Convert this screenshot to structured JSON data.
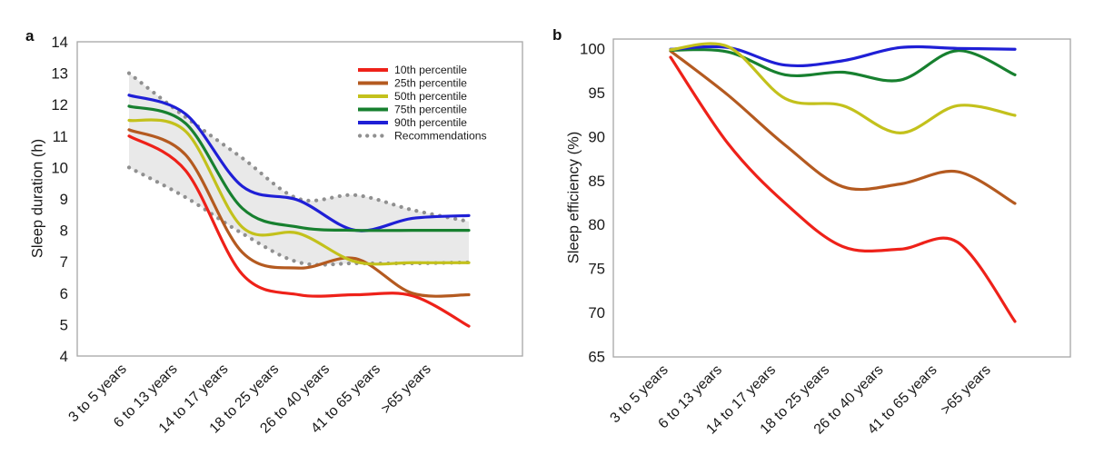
{
  "chart_data": [
    {
      "type": "line",
      "panel_label": "a",
      "ylabel": "Sleep duration (h)",
      "ylim": [
        4,
        14
      ],
      "yticks": [
        4,
        5,
        6,
        7,
        8,
        9,
        10,
        11,
        12,
        13,
        14
      ],
      "categories": [
        "3 to 5 years",
        "6 to 13 years",
        "14 to 17 years",
        "18 to 25 years",
        "26 to 40 years",
        "41 to 65 years",
        ">65 years"
      ],
      "series": [
        {
          "name": "10th percentile",
          "color": "#ee2119",
          "values": [
            11.0,
            9.9,
            6.6,
            5.95,
            5.95,
            5.92,
            4.95
          ]
        },
        {
          "name": "25th percentile",
          "color": "#b45a20",
          "values": [
            11.2,
            10.4,
            7.3,
            6.8,
            7.1,
            6.0,
            5.95
          ]
        },
        {
          "name": "50th percentile",
          "color": "#c3c11c",
          "values": [
            11.5,
            11.15,
            8.1,
            7.9,
            7.0,
            6.97,
            6.97
          ]
        },
        {
          "name": "75th percentile",
          "color": "#17802f",
          "values": [
            11.95,
            11.4,
            8.7,
            8.1,
            8.0,
            8.0,
            8.0
          ]
        },
        {
          "name": "90th percentile",
          "color": "#1f1fd6",
          "values": [
            12.3,
            11.7,
            9.4,
            8.95,
            8.0,
            8.38,
            8.47
          ]
        }
      ],
      "recommendations": {
        "name": "Recommendations",
        "color": "#909090",
        "band_color": "#e9e9e9",
        "upper": [
          13.0,
          11.6,
          10.3,
          9.0,
          9.12,
          8.65,
          8.28
        ],
        "lower": [
          10.0,
          9.05,
          7.9,
          6.98,
          6.95,
          6.95,
          6.98
        ]
      },
      "legend_position": "top-right",
      "grid": false
    },
    {
      "type": "line",
      "panel_label": "b",
      "ylabel": "Sleep efficiency (%)",
      "ylim": [
        65,
        100
      ],
      "yticks": [
        65,
        70,
        75,
        80,
        85,
        90,
        95,
        100
      ],
      "categories": [
        "3 to 5 years",
        "6 to 13 years",
        "14 to 17 years",
        "18 to 25 years",
        "26 to 40 years",
        "41 to 65 years",
        ">65 years"
      ],
      "series": [
        {
          "name": "10th percentile",
          "color": "#ee2119",
          "values": [
            99.0,
            89.2,
            82.4,
            77.5,
            77.2,
            78.0,
            69.0
          ]
        },
        {
          "name": "25th percentile",
          "color": "#b45a20",
          "values": [
            99.7,
            94.7,
            89.0,
            84.3,
            84.6,
            86.0,
            82.4
          ]
        },
        {
          "name": "50th percentile",
          "color": "#c3c11c",
          "values": [
            99.85,
            100.2,
            94.3,
            93.5,
            90.4,
            93.5,
            92.4
          ]
        },
        {
          "name": "75th percentile",
          "color": "#17802f",
          "values": [
            99.8,
            99.6,
            97.0,
            97.3,
            96.4,
            99.75,
            97.0
          ]
        },
        {
          "name": "90th percentile",
          "color": "#1f1fd6",
          "values": [
            99.9,
            100.1,
            98.1,
            98.6,
            100.1,
            100.0,
            99.9
          ]
        }
      ],
      "grid": false
    }
  ]
}
